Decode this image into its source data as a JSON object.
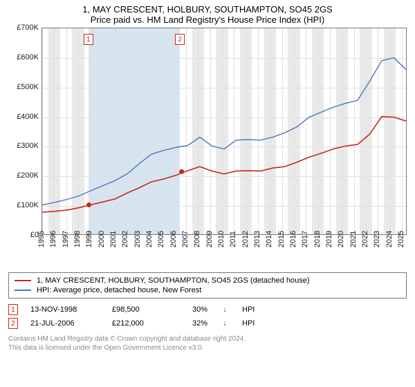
{
  "title": "1, MAY CRESCENT, HOLBURY, SOUTHAMPTON, SO45 2GS",
  "subtitle": "Price paid vs. HM Land Registry's House Price Index (HPI)",
  "chart": {
    "type": "line",
    "ylim": [
      0,
      700
    ],
    "ytick_step": 100,
    "y_prefix": "£",
    "y_suffix": "K",
    "x_categories": [
      "1995",
      "1996",
      "1997",
      "1998",
      "1999",
      "2000",
      "2001",
      "2002",
      "2003",
      "2004",
      "2005",
      "2006",
      "2007",
      "2008",
      "2009",
      "2010",
      "2011",
      "2012",
      "2013",
      "2014",
      "2015",
      "2016",
      "2017",
      "2018",
      "2019",
      "2020",
      "2021",
      "2022",
      "2023",
      "2024",
      "2025"
    ],
    "background_color": "#ffffff",
    "plot_border_color": "#777777",
    "grid_color": "#e0e0e0",
    "alt_band_color": "#e9e9e9",
    "highlight_band_color": "#d6e4f0",
    "highlight_bands": [
      {
        "from_idx": 3.85,
        "to_idx": 11.5
      }
    ],
    "title_fontsize": 13,
    "tick_fontsize": 11,
    "series": [
      {
        "name": "price_paid",
        "label": "1, MAY CRESCENT, HOLBURY, SOUTHAMPTON, SO45 2GS (detached house)",
        "color": "#c7261c",
        "line_width": 1.6,
        "values": [
          75,
          78,
          82,
          90,
          100,
          110,
          120,
          140,
          158,
          178,
          188,
          200,
          216,
          230,
          215,
          205,
          215,
          216,
          215,
          225,
          230,
          245,
          262,
          275,
          290,
          300,
          305,
          340,
          400,
          398,
          385
        ]
      },
      {
        "name": "hpi",
        "label": "HPI: Average price, detached house, New Forest",
        "color": "#4a76b8",
        "line_width": 1.4,
        "values": [
          100,
          108,
          118,
          130,
          148,
          165,
          182,
          205,
          240,
          272,
          285,
          295,
          302,
          330,
          300,
          290,
          320,
          322,
          320,
          330,
          345,
          365,
          398,
          415,
          432,
          445,
          455,
          520,
          590,
          600,
          560
        ]
      }
    ],
    "markers": [
      {
        "id": "1",
        "x_idx": 3.85,
        "y": 100,
        "color": "#c7261c"
      },
      {
        "id": "2",
        "x_idx": 11.5,
        "y": 213,
        "color": "#c7261c"
      }
    ],
    "marker_labels": [
      {
        "id": "1",
        "x_idx": 3.85,
        "color": "#c7261c"
      },
      {
        "id": "2",
        "x_idx": 11.5,
        "color": "#c7261c"
      }
    ]
  },
  "legend": {
    "items": [
      {
        "color": "#c7261c",
        "label": "1, MAY CRESCENT, HOLBURY, SOUTHAMPTON, SO45 2GS (detached house)"
      },
      {
        "color": "#4a76b8",
        "label": "HPI: Average price, detached house, New Forest"
      }
    ]
  },
  "sales": [
    {
      "id": "1",
      "marker_color": "#c7261c",
      "date": "13-NOV-1998",
      "price": "£98,500",
      "pct": "30%",
      "arrow": "↓",
      "arrow_color": "#c7261c",
      "suffix": "HPI"
    },
    {
      "id": "2",
      "marker_color": "#c7261c",
      "date": "21-JUL-2006",
      "price": "£212,000",
      "pct": "32%",
      "arrow": "↓",
      "arrow_color": "#c7261c",
      "suffix": "HPI"
    }
  ],
  "footer": {
    "line1": "Contains HM Land Registry data © Crown copyright and database right 2024.",
    "line2": "This data is licensed under the Open Government Licence v3.0."
  }
}
